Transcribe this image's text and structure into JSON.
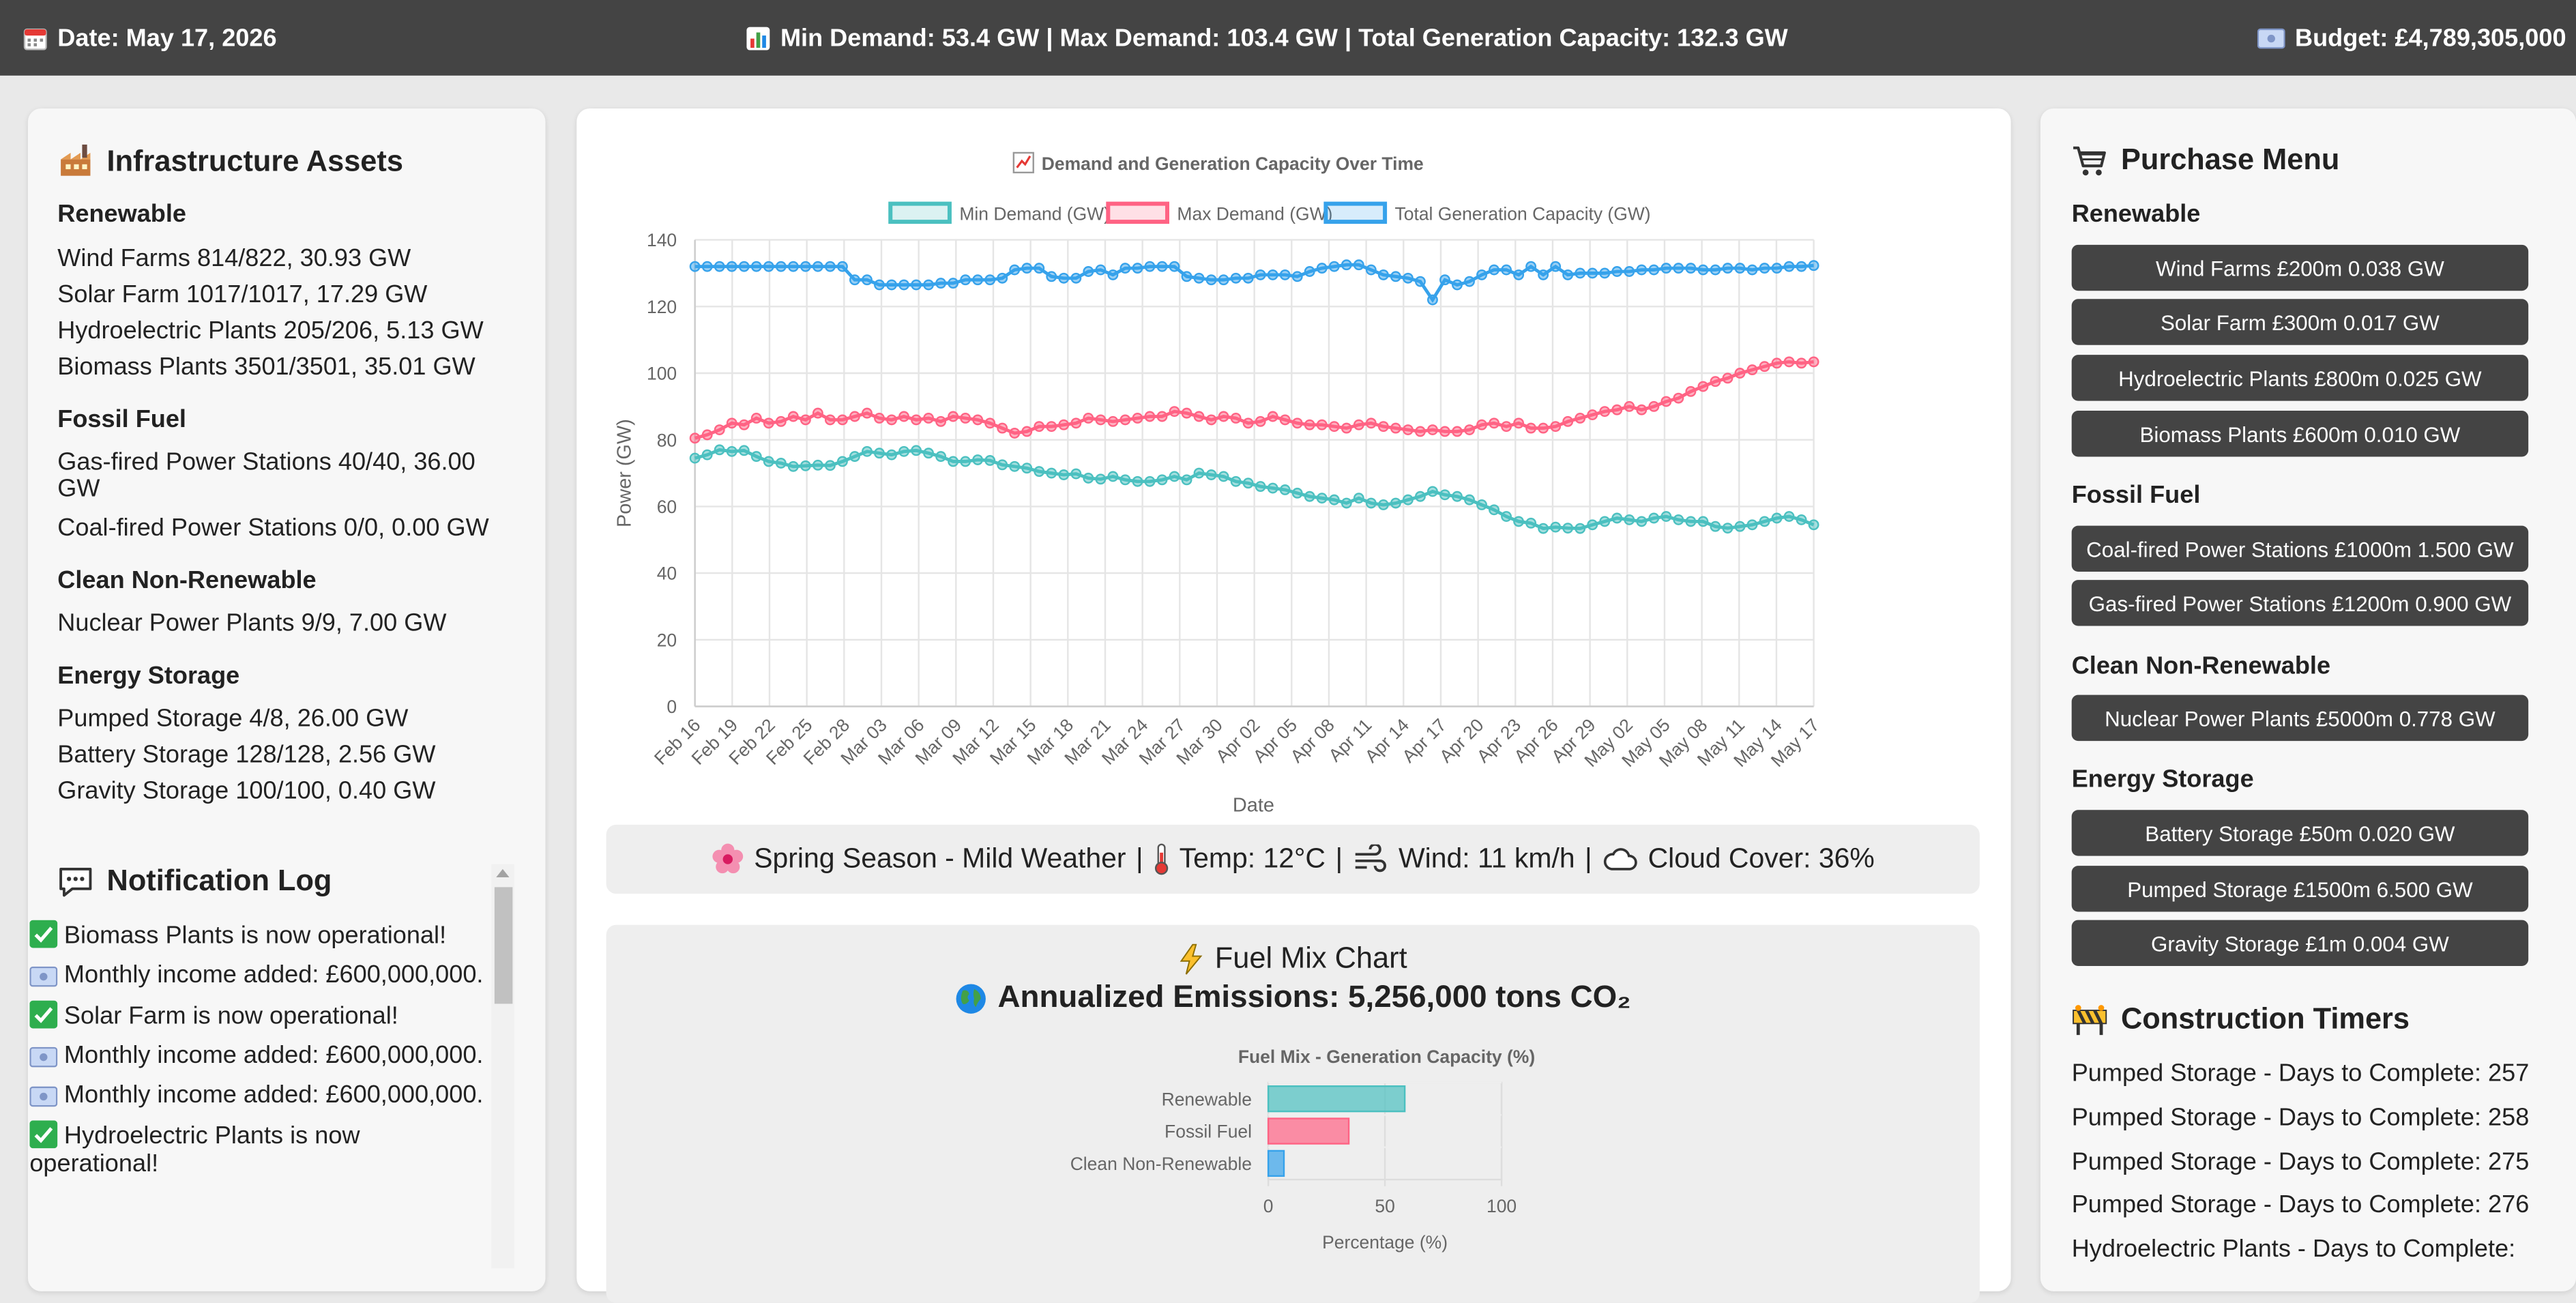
{
  "topbar": {
    "date": "Date: May 17, 2026",
    "demand_summary": "Min Demand: 53.4 GW | Max Demand: 103.4 GW | Total Generation Capacity: 132.3 GW",
    "budget": "Budget: £4,789,305,000"
  },
  "infrastructure": {
    "title": "Infrastructure Assets",
    "groups": [
      {
        "category": "Renewable",
        "items": [
          "Wind Farms 814/822, 30.93 GW",
          "Solar Farm 1017/1017, 17.29 GW",
          "Hydroelectric Plants 205/206, 5.13 GW",
          "Biomass Plants 3501/3501, 35.01 GW"
        ]
      },
      {
        "category": "Fossil Fuel",
        "items": [
          "Gas-fired Power Stations 40/40, 36.00 GW",
          "Coal-fired Power Stations 0/0, 0.00 GW"
        ]
      },
      {
        "category": "Clean Non-Renewable",
        "items": [
          "Nuclear Power Plants 9/9, 7.00 GW"
        ]
      },
      {
        "category": "Energy Storage",
        "items": [
          "Pumped Storage 4/8, 26.00 GW",
          "Battery Storage 128/128, 2.56 GW",
          "Gravity Storage 100/100, 0.40 GW"
        ]
      }
    ]
  },
  "notifications": {
    "title": "Notification Log",
    "entries": [
      {
        "icon": "check-icon",
        "text": "Biomass Plants is now operational!"
      },
      {
        "icon": "money-icon",
        "text": "Monthly income added: £600,000,000."
      },
      {
        "icon": "check-icon",
        "text": "Solar Farm is now operational!"
      },
      {
        "icon": "money-icon",
        "text": "Monthly income added: £600,000,000."
      },
      {
        "icon": "money-icon",
        "text": "Monthly income added: £600,000,000."
      },
      {
        "icon": "check-icon",
        "text": "Hydroelectric Plants is now operational!"
      }
    ]
  },
  "purchase": {
    "title": "Purchase Menu",
    "groups": [
      {
        "category": "Renewable",
        "buttons": [
          "Wind Farms £200m 0.038 GW",
          "Solar Farm £300m 0.017 GW",
          "Hydroelectric Plants £800m 0.025 GW",
          "Biomass Plants £600m 0.010 GW"
        ]
      },
      {
        "category": "Fossil Fuel",
        "buttons": [
          "Coal-fired Power Stations £1000m 1.500 GW",
          "Gas-fired Power Stations £1200m 0.900 GW"
        ]
      },
      {
        "category": "Clean Non-Renewable",
        "buttons": [
          "Nuclear Power Plants £5000m 0.778 GW"
        ]
      },
      {
        "category": "Energy Storage",
        "buttons": [
          "Battery Storage £50m 0.020 GW",
          "Pumped Storage £1500m 6.500 GW",
          "Gravity Storage £1m 0.004 GW"
        ]
      }
    ]
  },
  "timers": {
    "title": "Construction Timers",
    "entries": [
      "Pumped Storage - Days to Complete: 257",
      "Pumped Storage - Days to Complete: 258",
      "Pumped Storage - Days to Complete: 275",
      "Pumped Storage - Days to Complete: 276",
      "Hydroelectric Plants - Days to Complete:"
    ]
  },
  "weather": {
    "season": "Spring Season - Mild Weather",
    "temp": "Temp: 12°C",
    "wind": "Wind: 11 km/h",
    "cloud": "Cloud Cover: 36%"
  },
  "fuel_mix": {
    "title": "Fuel Mix Chart",
    "emissions": "Annualized Emissions: 5,256,000 tons CO₂"
  },
  "colors": {
    "min": "#4bc0c0",
    "max": "#ff6384",
    "total": "#36a2eb",
    "button": "#444444",
    "topbar": "#444444"
  },
  "chart_data": [
    {
      "type": "line",
      "title": "Demand and Generation Capacity Over Time",
      "xlabel": "Date",
      "ylabel": "Power (GW)",
      "ylim": [
        0,
        140
      ],
      "y_ticks": [
        0,
        20,
        40,
        60,
        80,
        100,
        120,
        140
      ],
      "x_tick_labels": [
        "Feb 16",
        "Feb 19",
        "Feb 22",
        "Feb 25",
        "Feb 28",
        "Mar 03",
        "Mar 06",
        "Mar 09",
        "Mar 12",
        "Mar 15",
        "Mar 18",
        "Mar 21",
        "Mar 24",
        "Mar 27",
        "Mar 30",
        "Apr 02",
        "Apr 05",
        "Apr 08",
        "Apr 11",
        "Apr 14",
        "Apr 17",
        "Apr 20",
        "Apr 23",
        "Apr 26",
        "Apr 29",
        "May 02",
        "May 05",
        "May 08",
        "May 11",
        "May 14",
        "May 17"
      ],
      "legend_position": "top",
      "grid": true,
      "series": [
        {
          "name": "Min Demand (GW)",
          "values": [
            74.5,
            75.5,
            77.0,
            76.5,
            76.8,
            75.0,
            73.5,
            73.0,
            72.0,
            72.2,
            72.4,
            72.3,
            73.5,
            75.0,
            76.5,
            76.0,
            75.5,
            76.5,
            76.8,
            76.0,
            75.0,
            73.5,
            73.5,
            74.0,
            73.8,
            72.5,
            72.0,
            71.5,
            70.5,
            70.0,
            69.5,
            69.8,
            68.5,
            68.2,
            69.0,
            68.0,
            67.5,
            67.5,
            68.0,
            69.0,
            68.0,
            70.0,
            69.5,
            69.0,
            67.5,
            67.0,
            66.0,
            65.5,
            65.0,
            64.0,
            63.0,
            62.5,
            62.0,
            61.0,
            62.5,
            61.0,
            60.5,
            61.0,
            62.0,
            63.0,
            64.5,
            63.5,
            63.0,
            62.0,
            60.5,
            59.0,
            57.0,
            55.5,
            55.0,
            53.4,
            53.8,
            53.5,
            53.4,
            54.5,
            55.5,
            56.5,
            56.0,
            55.5,
            56.5,
            57.0,
            56.0,
            55.5,
            55.5,
            54.0,
            53.5,
            54.0,
            54.5,
            55.5,
            56.5,
            57.0,
            56.0,
            54.5
          ]
        },
        {
          "name": "Max Demand (GW)",
          "values": [
            80.5,
            81.5,
            83.0,
            85.0,
            84.5,
            86.5,
            85.0,
            85.5,
            87.0,
            86.0,
            88.0,
            86.0,
            86.0,
            87.0,
            88.0,
            86.5,
            86.0,
            87.0,
            86.0,
            86.5,
            85.5,
            87.0,
            86.5,
            86.0,
            85.0,
            83.5,
            82.0,
            82.5,
            84.0,
            84.0,
            84.5,
            85.0,
            86.5,
            86.0,
            85.5,
            86.0,
            86.5,
            87.0,
            87.0,
            88.5,
            88.0,
            87.0,
            86.0,
            87.0,
            86.5,
            85.0,
            85.5,
            87.0,
            86.0,
            85.0,
            84.5,
            84.5,
            84.0,
            83.5,
            84.5,
            85.0,
            84.0,
            83.5,
            83.0,
            82.5,
            83.0,
            82.5,
            82.5,
            83.0,
            84.5,
            85.0,
            84.0,
            85.0,
            83.5,
            83.5,
            84.0,
            85.5,
            86.5,
            87.5,
            88.5,
            89.0,
            90.0,
            89.0,
            90.0,
            91.5,
            92.5,
            94.5,
            96.0,
            97.5,
            98.5,
            100.0,
            101.0,
            102.0,
            103.0,
            103.4,
            103.0,
            103.4
          ]
        },
        {
          "name": "Total Generation Capacity (GW)",
          "values": [
            132.0,
            132.0,
            132.0,
            132.0,
            132.0,
            132.0,
            132.0,
            132.0,
            132.0,
            132.0,
            132.0,
            132.0,
            132.0,
            128.0,
            128.0,
            126.5,
            126.5,
            126.5,
            126.5,
            126.5,
            127.0,
            127.0,
            128.0,
            128.0,
            128.0,
            128.5,
            131.0,
            131.5,
            131.5,
            129.0,
            128.5,
            128.5,
            130.5,
            131.0,
            129.5,
            131.5,
            131.5,
            132.0,
            132.0,
            132.0,
            129.0,
            128.5,
            128.0,
            128.0,
            128.5,
            128.5,
            129.5,
            129.5,
            129.5,
            129.0,
            130.5,
            131.5,
            132.0,
            132.5,
            132.5,
            131.0,
            129.5,
            129.0,
            128.5,
            127.5,
            122.0,
            128.0,
            126.5,
            127.5,
            129.5,
            131.0,
            131.0,
            129.5,
            132.0,
            129.5,
            132.0,
            129.5,
            130.0,
            130.0,
            130.0,
            130.5,
            130.5,
            131.0,
            131.0,
            131.5,
            131.5,
            131.5,
            131.0,
            131.0,
            131.5,
            131.5,
            131.0,
            131.5,
            131.5,
            132.0,
            132.0,
            132.3
          ]
        }
      ]
    },
    {
      "type": "bar",
      "orientation": "horizontal",
      "title": "Fuel Mix - Generation Capacity (%)",
      "xlabel": "Percentage (%)",
      "xlim": [
        0,
        100
      ],
      "x_ticks": [
        0,
        50,
        100
      ],
      "categories": [
        "Renewable",
        "Fossil Fuel",
        "Clean Non-Renewable"
      ],
      "values": [
        58.5,
        34.5,
        6.7
      ],
      "bar_colors": [
        "#4bc0c0",
        "#ff6384",
        "#36a2eb"
      ]
    }
  ]
}
